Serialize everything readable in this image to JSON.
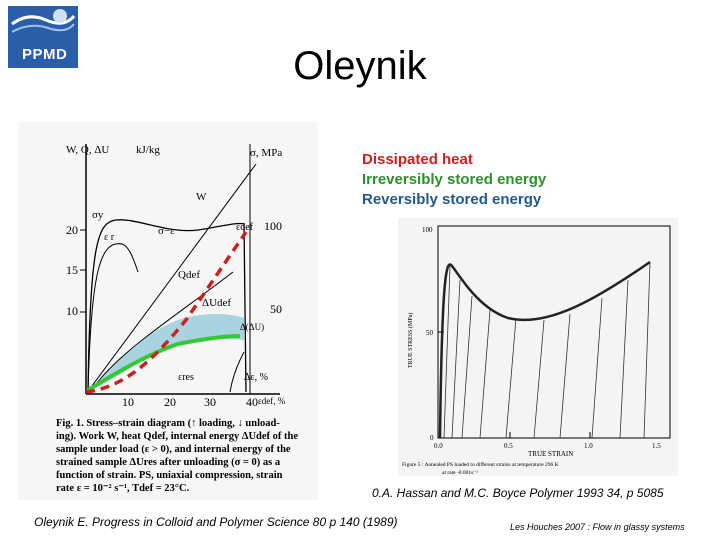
{
  "logo": {
    "text": "PPMD"
  },
  "title": "Oleynik",
  "legend": {
    "dissipated": "Dissipated heat",
    "irreversible": "Irreversibly stored energy",
    "reversible": "Reversibly stored energy"
  },
  "fig1": {
    "left_axis_label": "W, Q, ΔU",
    "left_axis_unit": "kJ/kg",
    "right_axis_label": "σ, MPa",
    "left_ticks": [
      "10",
      "15",
      "20"
    ],
    "right_ticks": [
      "50",
      "100"
    ],
    "x_ticks": [
      "10",
      "20",
      "30",
      "40"
    ],
    "x_unit": "ε, %",
    "curve_labels": {
      "W": "W",
      "sigma_y": "σy",
      "eps_r": "ε r",
      "sigma_eps": "σ−ε",
      "eps_def": "εdef",
      "Q_def": "Qdef",
      "dU_def": "ΔUdef",
      "dU": "Δ(ΔU)",
      "eps_res": "εres",
      "d_eps": "Δε, %",
      "x_axis": "εdef, %"
    },
    "caption": [
      "Fig. 1. Stress–strain diagram (↑ loading, ↓ unload-",
      "ing). Work W, heat Qdef, internal energy ΔUdef of the",
      "sample under load (ε > 0), and internal energy of the",
      "strained sample ΔUres after unloading (σ = 0) as a",
      "function of strain. PS, uniaxial compression, strain",
      "rate ε = 10⁻² s⁻¹, Tdef = 23°C."
    ]
  },
  "fig5": {
    "y_label": "TRUE STRESS (MPa)",
    "x_label": "TRUE STRAIN",
    "y_ticks": [
      "0",
      "50",
      "100"
    ],
    "x_ticks": [
      "0.0",
      "0.5",
      "1.0",
      "1.5"
    ],
    "caption": "Figure 5 : Annealed PS loaded to different strains at temperature 296 K",
    "caption2": "at rate -0.001s⁻¹"
  },
  "references": {
    "hassan": "0.A. Hassan and M.C. Boyce Polymer 1993 34, p 5085",
    "oleynik": "Oleynik E. Progress in Colloid and Polymer Science 80 p 140 (1989)"
  },
  "footer": "Les Houches 2007 : Flow in glassy systems",
  "colors": {
    "red": "#cc1f1f",
    "green": "#2f8f2f",
    "blue": "#1f5a8a",
    "light_blue": "#a9d3de"
  }
}
